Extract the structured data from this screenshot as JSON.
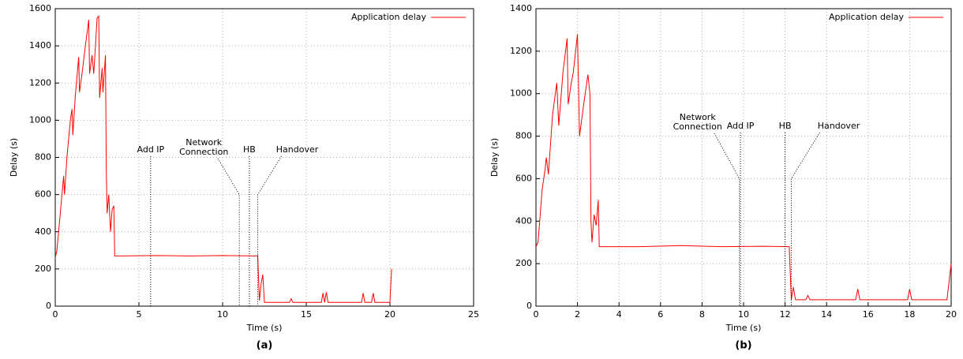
{
  "chart_data": [
    {
      "type": "line",
      "caption": "(a)",
      "xlabel": "Time (s)",
      "ylabel": "Delay (s)",
      "x": [
        0,
        0.1,
        0.3,
        0.5,
        0.55,
        0.7,
        0.9,
        1.0,
        1.05,
        1.2,
        1.4,
        1.45,
        1.6,
        1.8,
        2.0,
        2.05,
        2.2,
        2.3,
        2.5,
        2.6,
        2.65,
        2.8,
        2.85,
        3.0,
        3.05,
        3.1,
        3.2,
        3.3,
        3.4,
        3.5,
        3.55,
        4,
        6,
        8,
        10,
        12,
        12.1,
        12.2,
        12.3,
        12.4,
        12.5,
        14,
        14.1,
        14.2,
        15.9,
        16,
        16.1,
        16.2,
        16.3,
        18.3,
        18.4,
        18.5,
        18.9,
        19,
        19.1,
        20,
        20.1
      ],
      "series": [
        {
          "name": "Application delay",
          "color": "#ff0000",
          "values": [
            260,
            300,
            500,
            700,
            600,
            800,
            1000,
            1060,
            920,
            1130,
            1340,
            1150,
            1250,
            1400,
            1540,
            1250,
            1350,
            1250,
            1550,
            1560,
            1120,
            1280,
            1150,
            1350,
            720,
            500,
            600,
            400,
            520,
            540,
            270,
            270,
            272,
            270,
            272,
            270,
            272,
            30,
            120,
            170,
            20,
            20,
            40,
            20,
            20,
            70,
            20,
            75,
            20,
            20,
            70,
            20,
            20,
            70,
            20,
            20,
            200
          ]
        }
      ],
      "xlim": [
        0,
        25
      ],
      "xticks": [
        0,
        5,
        10,
        15,
        20,
        25
      ],
      "ylim": [
        0,
        1600
      ],
      "yticks": [
        0,
        200,
        400,
        600,
        800,
        1000,
        1200,
        1400,
        1600
      ],
      "grid": true,
      "legend": "top-right",
      "annotations": [
        {
          "label": [
            "Add IP"
          ],
          "x": 5.7
        },
        {
          "label": [
            "Network",
            "Connection"
          ],
          "x": 11.0
        },
        {
          "label": [
            "HB"
          ],
          "x": 11.6
        },
        {
          "label": [
            "Handover"
          ],
          "x": 12.1
        }
      ]
    },
    {
      "type": "line",
      "caption": "(b)",
      "xlabel": "Time (s)",
      "ylabel": "Delay (s)",
      "x": [
        0,
        0.1,
        0.3,
        0.45,
        0.5,
        0.6,
        0.8,
        1.0,
        1.1,
        1.3,
        1.5,
        1.55,
        1.7,
        1.8,
        2.0,
        2.1,
        2.3,
        2.5,
        2.6,
        2.65,
        2.7,
        2.8,
        2.9,
        3.0,
        3.05,
        5,
        7,
        9,
        11,
        12.2,
        12.3,
        12.4,
        12.5,
        13,
        13.1,
        13.2,
        15.4,
        15.5,
        15.6,
        17.9,
        18,
        18.1,
        19.8,
        20
      ],
      "series": [
        {
          "name": "Application delay",
          "color": "#ff0000",
          "values": [
            280,
            300,
            550,
            650,
            700,
            620,
            900,
            1050,
            850,
            1100,
            1260,
            950,
            1050,
            1100,
            1280,
            800,
            950,
            1090,
            1000,
            400,
            300,
            430,
            380,
            500,
            280,
            280,
            285,
            280,
            282,
            280,
            30,
            90,
            30,
            30,
            50,
            30,
            30,
            80,
            30,
            30,
            80,
            30,
            30,
            200
          ]
        }
      ],
      "xlim": [
        0,
        20
      ],
      "xticks": [
        0,
        2,
        4,
        6,
        8,
        10,
        12,
        14,
        16,
        18,
        20
      ],
      "ylim": [
        0,
        1400
      ],
      "yticks": [
        0,
        200,
        400,
        600,
        800,
        1000,
        1200,
        1400
      ],
      "grid": true,
      "legend": "top-right",
      "annotations": [
        {
          "label": [
            "Network",
            "Connection"
          ],
          "x": 9.8
        },
        {
          "label": [
            "Add IP"
          ],
          "x": 9.85
        },
        {
          "label": [
            "HB"
          ],
          "x": 12.0
        },
        {
          "label": [
            "Handover"
          ],
          "x": 12.3
        }
      ]
    }
  ]
}
